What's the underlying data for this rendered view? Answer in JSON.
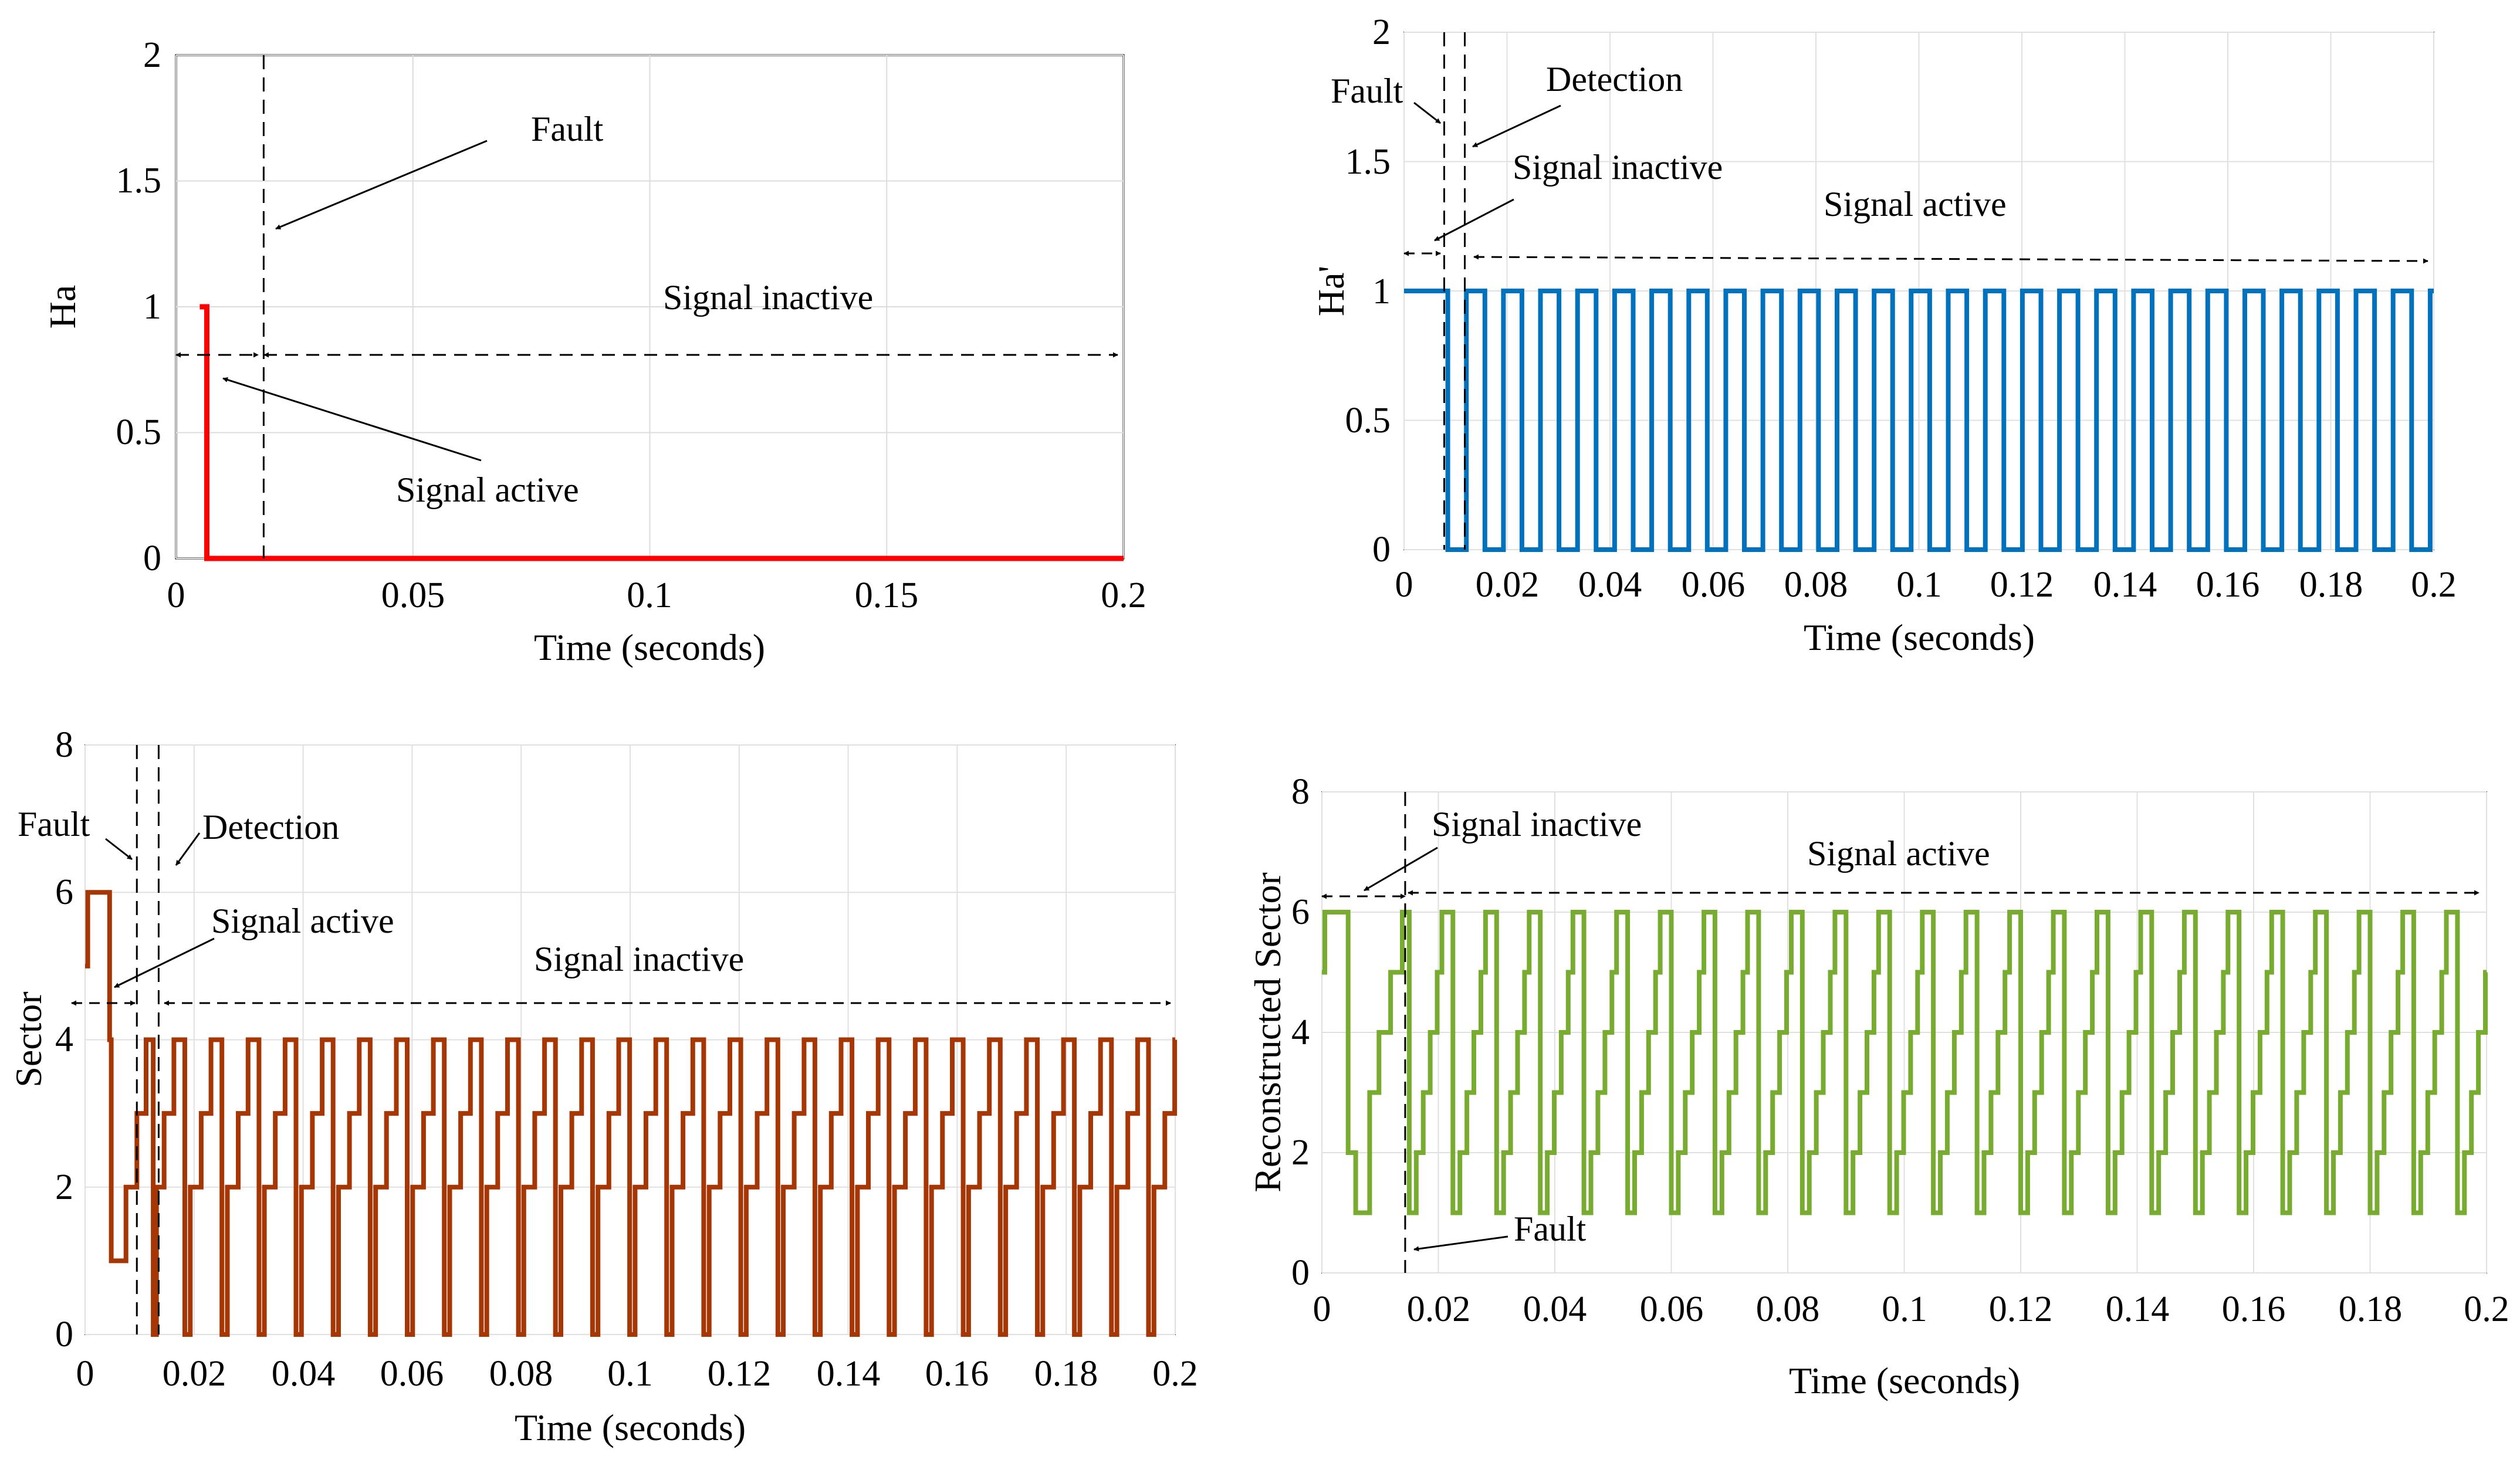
{
  "chart_data": [
    {
      "type": "line",
      "id": "ha",
      "xlabel": "Time (seconds)",
      "ylabel": "Ha",
      "xlim": [
        0,
        0.2
      ],
      "ylim": [
        0,
        2
      ],
      "xticks": [
        0,
        0.05,
        0.1,
        0.15,
        0.2
      ],
      "xtick_labels": [
        "0",
        "0.05",
        "0.1",
        "0.15",
        "0.2"
      ],
      "yticks": [
        0,
        0.5,
        1,
        1.5,
        2
      ],
      "ytick_labels": [
        "0",
        "0.5",
        "1",
        "1.5",
        "2"
      ],
      "color": "#ff0000",
      "series": [
        {
          "name": "Ha",
          "x": [
            0.005,
            0.0065,
            0.0065,
            0.2
          ],
          "y": [
            1,
            1,
            0,
            0
          ]
        }
      ],
      "vlines": [
        0.0185
      ],
      "annotations": [
        {
          "text": "Fault"
        },
        {
          "text": "Signal inactive"
        },
        {
          "text": "Signal active"
        }
      ]
    },
    {
      "type": "line",
      "id": "ha_prime",
      "xlabel": "Time (seconds)",
      "ylabel": "Ha'",
      "xlim": [
        0,
        0.2
      ],
      "ylim": [
        0,
        2
      ],
      "xticks": [
        0,
        0.02,
        0.04,
        0.06,
        0.08,
        0.1,
        0.12,
        0.14,
        0.16,
        0.18,
        0.2
      ],
      "xtick_labels": [
        "0",
        "0.02",
        "0.04",
        "0.06",
        "0.08",
        "0.1",
        "0.12",
        "0.14",
        "0.16",
        "0.18",
        "0.2"
      ],
      "yticks": [
        0,
        0.5,
        1,
        1.5,
        2
      ],
      "ytick_labels": [
        "0",
        "0.5",
        "1",
        "1.5",
        "2"
      ],
      "color": "#0072bd",
      "series": [
        {
          "name": "Ha'",
          "pulse_start": 0.0085,
          "period": 0.0072,
          "duty": 0.5,
          "high": 1,
          "low": 0,
          "initial_high_from": 0.0,
          "end": 0.2
        }
      ],
      "vlines": [
        0.0078,
        0.0118
      ],
      "annotations": [
        {
          "text": "Fault"
        },
        {
          "text": "Detection"
        },
        {
          "text": "Signal inactive"
        },
        {
          "text": "Signal active"
        }
      ]
    },
    {
      "type": "line",
      "id": "sector",
      "xlabel": "Time (seconds)",
      "ylabel": "Sector",
      "xlim": [
        0,
        0.2
      ],
      "ylim": [
        0,
        8
      ],
      "xticks": [
        0,
        0.02,
        0.04,
        0.06,
        0.08,
        0.1,
        0.12,
        0.14,
        0.16,
        0.18,
        0.2
      ],
      "xtick_labels": [
        "0",
        "0.02",
        "0.04",
        "0.06",
        "0.08",
        "0.1",
        "0.12",
        "0.14",
        "0.16",
        "0.18",
        "0.2"
      ],
      "yticks": [
        0,
        2,
        4,
        6,
        8
      ],
      "ytick_labels": [
        "0",
        "2",
        "4",
        "6",
        "8"
      ],
      "color": "#a63603",
      "series": [
        {
          "name": "Sector",
          "x": [
            0,
            0.0005,
            0.0005,
            0.0045,
            0.0045,
            0.0048,
            0.0048,
            0.0075,
            0.0075,
            0.0095,
            0.0095,
            0.0112,
            0.0112,
            0.0125,
            0.0125,
            0.0131,
            0.0131
          ],
          "y": [
            5,
            5,
            6,
            6,
            4,
            4,
            1,
            1,
            2,
            2,
            3,
            3,
            4,
            4,
            0,
            0,
            2
          ],
          "periodic_after": 0.0131,
          "period": 0.0068,
          "pattern": [
            [
              0.0,
              2
            ],
            [
              0.0014,
              3
            ],
            [
              0.0032,
              4
            ],
            [
              0.0052,
              0
            ],
            [
              0.0062,
              2
            ]
          ]
        }
      ],
      "vlines": [
        0.0095,
        0.0135
      ],
      "annotations": [
        {
          "text": "Fault"
        },
        {
          "text": "Detection"
        },
        {
          "text": "Signal active"
        },
        {
          "text": "Signal inactive"
        }
      ]
    },
    {
      "type": "line",
      "id": "reconstructed_sector",
      "xlabel": "Time (seconds)",
      "ylabel": "Reconstructed Sector",
      "xlim": [
        0,
        0.2
      ],
      "ylim": [
        0,
        8
      ],
      "xticks": [
        0,
        0.02,
        0.04,
        0.06,
        0.08,
        0.1,
        0.12,
        0.14,
        0.16,
        0.18,
        0.2
      ],
      "xtick_labels": [
        "0",
        "0.02",
        "0.04",
        "0.06",
        "0.08",
        "0.1",
        "0.12",
        "0.14",
        "0.16",
        "0.18",
        "0.2"
      ],
      "yticks": [
        0,
        2,
        4,
        6,
        8
      ],
      "ytick_labels": [
        "0",
        "2",
        "4",
        "6",
        "8"
      ],
      "color": "#77ac30",
      "series": [
        {
          "name": "Reconstructed Sector",
          "x": [
            0,
            0.0005,
            0.0005,
            0.0045,
            0.0045,
            0.0058,
            0.0058,
            0.0082,
            0.0082,
            0.0098,
            0.0098,
            0.0118,
            0.0118,
            0.0138,
            0.0138
          ],
          "y": [
            5,
            5,
            6,
            6,
            2,
            2,
            1,
            1,
            3,
            3,
            4,
            4,
            5,
            5,
            6
          ],
          "periodic_after": 0.0138,
          "period": 0.0075,
          "pattern": [
            [
              0.0,
              6
            ],
            [
              0.0012,
              1
            ],
            [
              0.0024,
              2
            ],
            [
              0.0036,
              3
            ],
            [
              0.0048,
              4
            ],
            [
              0.006,
              5
            ],
            [
              0.0068,
              6
            ]
          ]
        }
      ],
      "vlines": [
        0.0143
      ],
      "annotations": [
        {
          "text": "Signal inactive"
        },
        {
          "text": "Signal active"
        },
        {
          "text": "Fault"
        }
      ]
    }
  ]
}
